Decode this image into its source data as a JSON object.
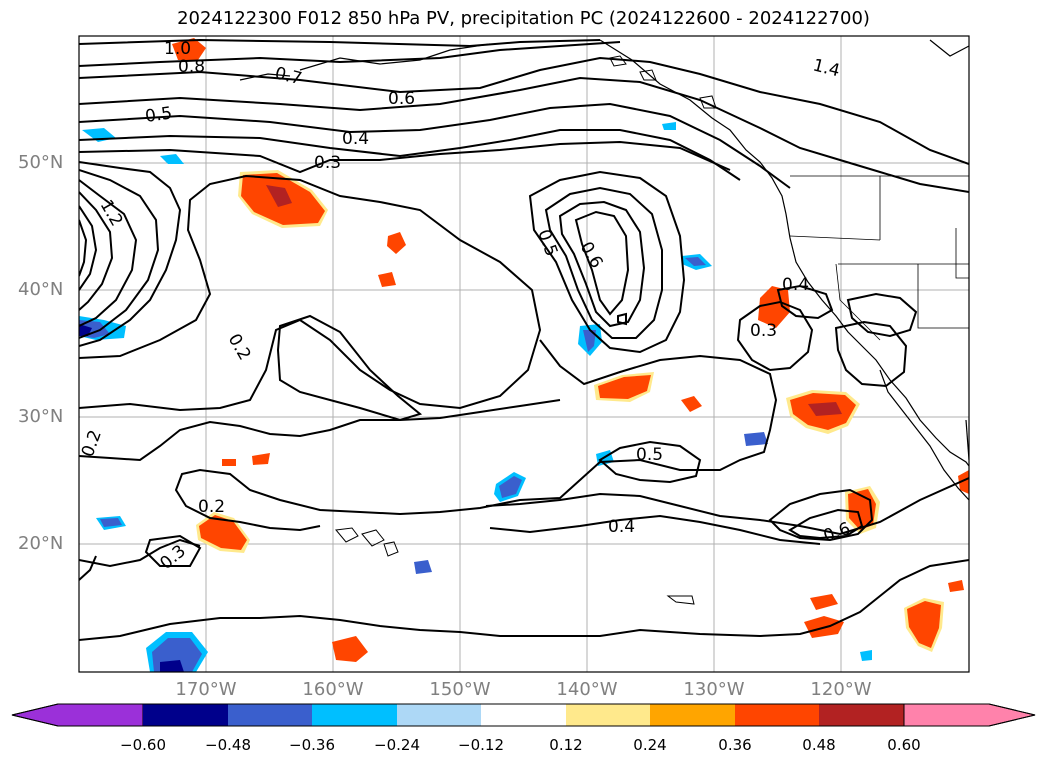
{
  "title": "2024122300 F012 850 hPa PV, precipitation PC (2024122600 - 2024122700)",
  "lat_labels": [
    "50°N",
    "40°N",
    "30°N",
    "20°N"
  ],
  "lon_labels": [
    "170°W",
    "160°W",
    "150°W",
    "140°W",
    "130°W",
    "120°W"
  ],
  "contour_labels": [
    "1.0",
    "0.8",
    "0.7",
    "0.6",
    "0.5",
    "0.4",
    "0.3",
    "0.2",
    "1.4",
    "1.2",
    "0.5",
    "0.6",
    "0.4",
    "0.3",
    "0.2",
    "0.5",
    "0.4",
    "0.6",
    "0.2",
    "0.3"
  ],
  "colorbar": {
    "ticks": [
      "−0.60",
      "−0.48",
      "−0.36",
      "−0.24",
      "−0.12",
      "0.12",
      "0.24",
      "0.36",
      "0.48",
      "0.60"
    ],
    "colors": [
      "#9b30d9",
      "#00008b",
      "#3a5fcd",
      "#00bfff",
      "#add8f6",
      "#ffffff",
      "#ffe98c",
      "#ffa500",
      "#ff4500",
      "#b22222",
      "#ff82ab"
    ]
  }
}
